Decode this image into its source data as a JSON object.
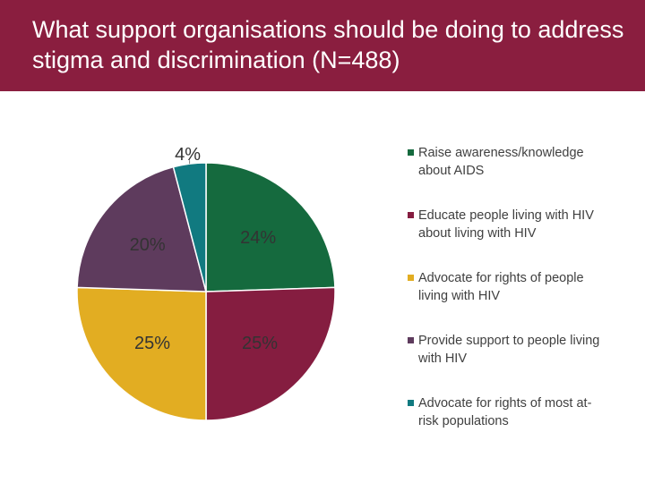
{
  "title": "What support organisations should be doing to address stigma and discrimination (N=488)",
  "colors": {
    "header_bg": "#8a1e3f",
    "header_text": "#ffffff"
  },
  "chart_data": {
    "type": "pie",
    "title": "What support organisations should be doing to address stigma and discrimination (N=488)",
    "legend_position": "right",
    "slices": [
      {
        "label": "Raise awareness/knowledge about AIDS",
        "value": 24,
        "display": "24%",
        "color": "#156a3e"
      },
      {
        "label": "Educate people living with HIV about living with HIV",
        "value": 25,
        "display": "25%",
        "color": "#851d40"
      },
      {
        "label": "Advocate for rights of people living with HIV",
        "value": 25,
        "display": "25%",
        "color": "#e2ad22"
      },
      {
        "label": "Provide support to people living with HIV",
        "value": 20,
        "display": "20%",
        "color": "#5e3b5d"
      },
      {
        "label": "Advocate for rights of most at-risk populations",
        "value": 4,
        "display": "4%",
        "color": "#117a80"
      }
    ]
  }
}
